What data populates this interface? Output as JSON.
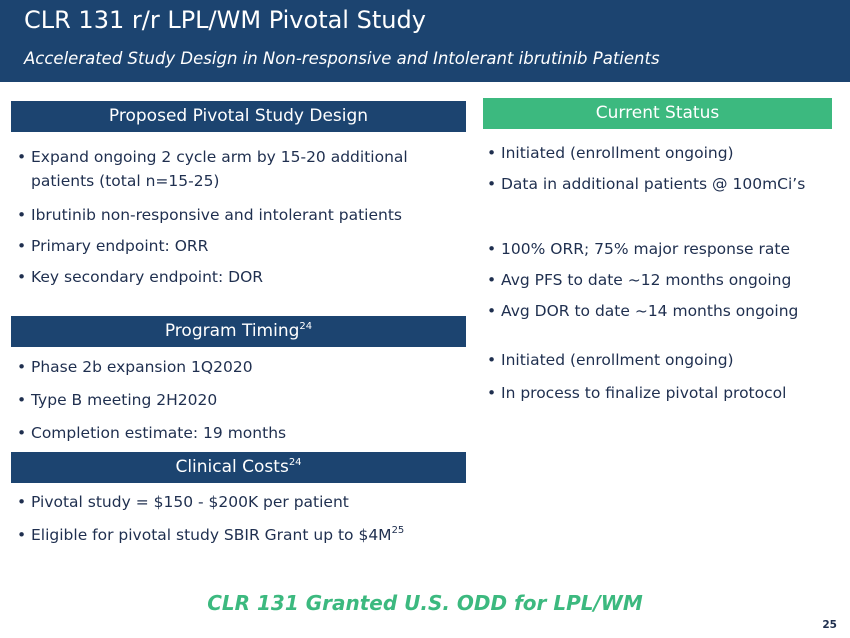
{
  "header": {
    "title": "CLR 131 r/r LPL/WM Pivotal Study",
    "subtitle": "Accelerated Study Design in Non-responsive and Intolerant ibrutinib Patients"
  },
  "design": {
    "heading": "Proposed Pivotal Study Design",
    "bullets": [
      "Expand ongoing 2 cycle arm by 15-20 additional",
      "patients (total n=15-25)",
      "Ibrutinib non-responsive and intolerant patients",
      "Primary endpoint: ORR",
      "Key secondary endpoint: DOR"
    ]
  },
  "timing": {
    "heading": "Program Timing",
    "ref": "24",
    "bullets": [
      "Phase 2b expansion 1Q2020",
      "Type B meeting 2H2020",
      "Completion estimate: 19 months"
    ]
  },
  "costs": {
    "heading": "Clinical Costs",
    "ref": "24",
    "bullets": [
      "Pivotal study = $150 - $200K per patient",
      "Eligible for pivotal study SBIR Grant up to $4M"
    ],
    "bullet2_ref": "25"
  },
  "status": {
    "heading": "Current Status",
    "group1": [
      "Initiated (enrollment ongoing)",
      "Data in additional patients @ 100mCi’s"
    ],
    "group2": [
      "100% ORR; 75% major response rate",
      "Avg PFS to date ~12 months ongoing",
      "Avg DOR to date ~14 months ongoing"
    ],
    "group3": [
      "Initiated (enrollment ongoing)",
      "In process to finalize pivotal protocol"
    ]
  },
  "footer": {
    "text": "CLR 131 Granted U.S. ODD for LPL/WM",
    "page": "25"
  },
  "colors": {
    "navy": "#1c4470",
    "green": "#3cb97f",
    "text": "#1f2f4f"
  }
}
